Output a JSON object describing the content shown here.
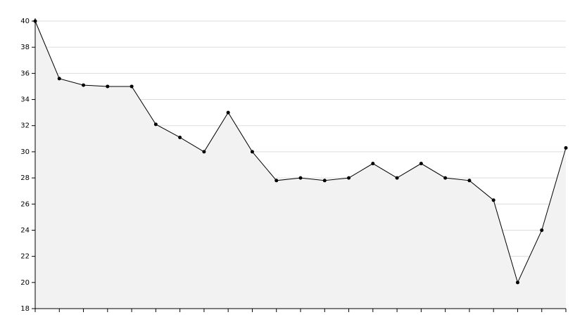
{
  "chart_data": {
    "type": "line",
    "categories": [
      null,
      null,
      null,
      null,
      null,
      null,
      null,
      null,
      null,
      null,
      null,
      null,
      null,
      null,
      null,
      null,
      null,
      null,
      null,
      null,
      null,
      null,
      null
    ],
    "values": [
      40,
      35.6,
      35.1,
      35,
      35,
      32.1,
      31.1,
      30,
      33,
      30,
      27.8,
      28,
      27.8,
      28,
      29.1,
      28,
      29.1,
      28,
      27.8,
      26.3,
      20,
      24,
      30.3
    ],
    "color": "#000000",
    "ylim": [
      18,
      40
    ],
    "yticks": [
      18,
      20,
      22,
      24,
      26,
      28,
      30,
      32,
      34,
      36,
      38,
      40
    ],
    "grid": true
  }
}
